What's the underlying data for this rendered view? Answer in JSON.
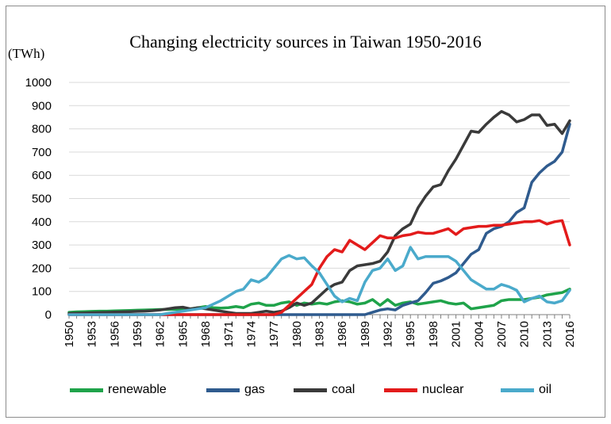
{
  "chart_data": {
    "type": "line",
    "title": "Changing electricity sources in Taiwan 1950-2016",
    "ylabel": "(TWh)",
    "xlabel": "",
    "ylim": [
      0,
      1000
    ],
    "yticks": [
      "0",
      "100",
      "200",
      "300",
      "400",
      "500",
      "600",
      "700",
      "800",
      "900",
      "1000"
    ],
    "xticks": [
      "1950",
      "1953",
      "1956",
      "1959",
      "1962",
      "1965",
      "1968",
      "1971",
      "1974",
      "1977",
      "1980",
      "1983",
      "1986",
      "1989",
      "1992",
      "1995",
      "1998",
      "2001",
      "2004",
      "2007",
      "2010",
      "2013",
      "2016"
    ],
    "grid": "horizontal",
    "legend": "bottom",
    "years": [
      1950,
      1951,
      1952,
      1953,
      1954,
      1955,
      1956,
      1957,
      1958,
      1959,
      1960,
      1961,
      1962,
      1963,
      1964,
      1965,
      1966,
      1967,
      1968,
      1969,
      1970,
      1971,
      1972,
      1973,
      1974,
      1975,
      1976,
      1977,
      1978,
      1979,
      1980,
      1981,
      1982,
      1983,
      1984,
      1985,
      1986,
      1987,
      1988,
      1989,
      1990,
      1991,
      1992,
      1993,
      1994,
      1995,
      1996,
      1997,
      1998,
      1999,
      2000,
      2001,
      2002,
      2003,
      2004,
      2005,
      2006,
      2007,
      2008,
      2009,
      2010,
      2011,
      2012,
      2013,
      2014,
      2015,
      2016
    ],
    "series": [
      {
        "name": "renewable",
        "color": "#1fa34a",
        "values": [
          10,
          12,
          13,
          14,
          15,
          15,
          16,
          17,
          18,
          19,
          20,
          21,
          22,
          22,
          23,
          24,
          25,
          30,
          35,
          30,
          28,
          30,
          35,
          30,
          45,
          50,
          40,
          40,
          50,
          55,
          40,
          50,
          45,
          50,
          45,
          55,
          60,
          55,
          45,
          50,
          65,
          40,
          65,
          40,
          50,
          55,
          45,
          50,
          55,
          60,
          50,
          45,
          50,
          25,
          30,
          35,
          40,
          60,
          65,
          65,
          65,
          70,
          75,
          85,
          90,
          95,
          110
        ]
      },
      {
        "name": "gas",
        "color": "#2f5b8e",
        "values": [
          0,
          0,
          0,
          0,
          0,
          0,
          0,
          0,
          0,
          0,
          0,
          0,
          0,
          0,
          0,
          0,
          0,
          0,
          0,
          0,
          0,
          0,
          0,
          0,
          0,
          0,
          0,
          0,
          0,
          0,
          0,
          0,
          0,
          0,
          0,
          0,
          0,
          0,
          0,
          0,
          10,
          20,
          25,
          20,
          40,
          50,
          60,
          95,
          135,
          145,
          160,
          180,
          220,
          260,
          280,
          350,
          370,
          380,
          400,
          440,
          460,
          570,
          610,
          640,
          660,
          700,
          820
        ]
      },
      {
        "name": "coal",
        "color": "#3a3a3a",
        "values": [
          5,
          6,
          7,
          8,
          9,
          10,
          11,
          12,
          13,
          14,
          15,
          17,
          20,
          25,
          30,
          32,
          25,
          30,
          25,
          20,
          15,
          10,
          5,
          5,
          5,
          10,
          15,
          10,
          15,
          30,
          50,
          40,
          50,
          80,
          110,
          130,
          140,
          190,
          210,
          215,
          220,
          230,
          270,
          340,
          370,
          390,
          460,
          510,
          550,
          560,
          620,
          670,
          730,
          790,
          785,
          820,
          850,
          875,
          860,
          830,
          840,
          860,
          860,
          815,
          820,
          780,
          835
        ]
      },
      {
        "name": "nuclear",
        "color": "#e31b1b",
        "values": [
          0,
          0,
          0,
          0,
          0,
          0,
          0,
          0,
          0,
          0,
          0,
          0,
          0,
          0,
          0,
          0,
          0,
          0,
          0,
          0,
          0,
          0,
          0,
          0,
          0,
          0,
          0,
          0,
          10,
          40,
          70,
          100,
          130,
          200,
          250,
          280,
          270,
          320,
          300,
          280,
          310,
          340,
          330,
          330,
          340,
          345,
          355,
          350,
          350,
          360,
          370,
          345,
          370,
          375,
          380,
          380,
          385,
          385,
          390,
          395,
          400,
          400,
          405,
          390,
          400,
          405,
          300
        ]
      },
      {
        "name": "oil",
        "color": "#4aaacb",
        "values": [
          0,
          0,
          0,
          0,
          0,
          0,
          0,
          0,
          0,
          0,
          0,
          0,
          0,
          5,
          10,
          15,
          20,
          25,
          30,
          45,
          60,
          80,
          100,
          110,
          150,
          140,
          160,
          200,
          240,
          255,
          240,
          245,
          210,
          180,
          130,
          80,
          55,
          70,
          60,
          140,
          190,
          200,
          240,
          190,
          210,
          290,
          240,
          250,
          250,
          250,
          250,
          230,
          190,
          150,
          130,
          110,
          110,
          130,
          120,
          105,
          55,
          70,
          80,
          55,
          50,
          60,
          105
        ]
      }
    ]
  }
}
